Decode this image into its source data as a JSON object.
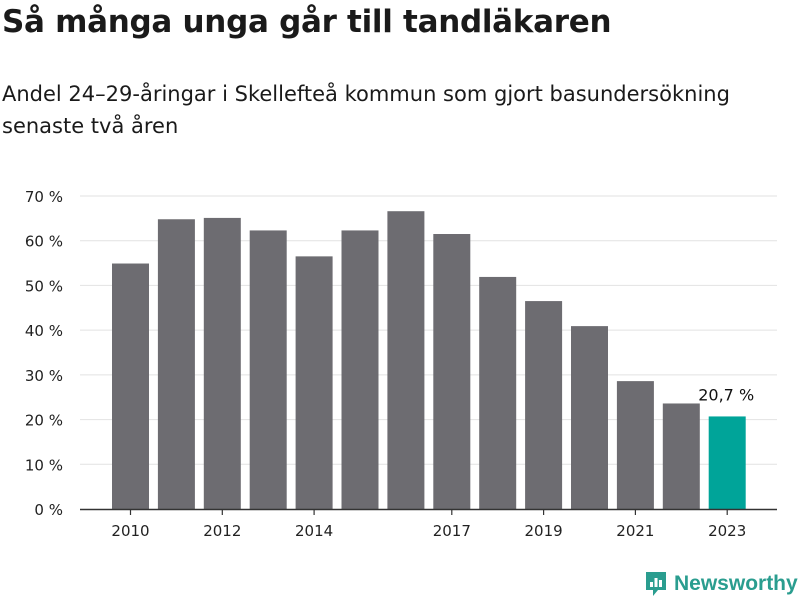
{
  "header": {
    "title": "Så många unga går till tandläkaren",
    "subtitle": "Andel 24–29-åringar i Skellefteå kommun som gjort basundersökning senaste två åren"
  },
  "chart_data": {
    "type": "bar",
    "categories": [
      "2010",
      "2011",
      "2012",
      "2013",
      "2014",
      "2015",
      "2016",
      "2017",
      "2018",
      "2019",
      "2020",
      "2021",
      "2022",
      "2023"
    ],
    "x_tick_labels": [
      "2010",
      "",
      "2012",
      "",
      "2014",
      "",
      "",
      "2017",
      "",
      "2019",
      "",
      "2021",
      "",
      "2023"
    ],
    "series": [
      {
        "values": [
          54.9,
          64.8,
          65.1,
          62.3,
          56.5,
          62.3,
          66.6,
          61.5,
          51.9,
          46.5,
          40.9,
          28.6,
          23.6,
          20.7
        ]
      }
    ],
    "ylim": [
      0,
      70
    ],
    "y_ticks": [
      0,
      10,
      20,
      30,
      40,
      50,
      60,
      70
    ],
    "y_tick_labels": [
      "0 %",
      "10 %",
      "20 %",
      "30 %",
      "40 %",
      "50 %",
      "60 %",
      "70 %"
    ],
    "grid": true,
    "highlight_index": 13,
    "highlight_label": "20,7 %",
    "colors": {
      "bar": "#6d6c71",
      "highlight": "#00a499",
      "grid": "#e2e2e2",
      "axis": "#333333"
    }
  },
  "brand": {
    "name": "Newsworthy",
    "icon": "newsworthy-logo-icon",
    "color": "#2a9d8f"
  }
}
